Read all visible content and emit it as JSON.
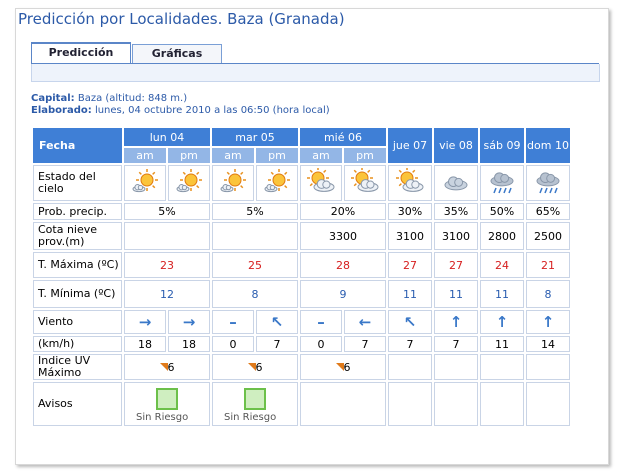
{
  "header": {
    "title": "Predicción por Localidades. Baza (Granada)"
  },
  "tabs": [
    "Predicción",
    "Gráficas"
  ],
  "info": {
    "capital_label": "Capital:",
    "capital": "Baza (altitud: 848 m.)",
    "elaborado_label": "Elaborado:",
    "elaborado": "lunes, 04 octubre 2010 a las 06:50 (hora local)"
  },
  "table": {
    "fecha": "Fecha",
    "days": [
      {
        "name": "lun 04",
        "periods": [
          "am",
          "pm"
        ]
      },
      {
        "name": "mar 05",
        "periods": [
          "am",
          "pm"
        ]
      },
      {
        "name": "mié 06",
        "periods": [
          "am",
          "pm"
        ]
      },
      {
        "name": "jue 07"
      },
      {
        "name": "vie 08"
      },
      {
        "name": "sáb 09"
      },
      {
        "name": "dom 10"
      }
    ],
    "rows": [
      {
        "key": "sky",
        "label": "Estado del cielo"
      },
      {
        "key": "prob",
        "label": "Prob. precip.",
        "cells": [
          "5%",
          "5%",
          "20%",
          "30%",
          "35%",
          "50%",
          "65%"
        ]
      },
      {
        "key": "cota",
        "label": "Cota nieve prov.(m)",
        "cells": [
          null,
          null,
          3300,
          3100,
          3100,
          2800,
          2500
        ]
      },
      {
        "key": "tmax",
        "label": "T. Máxima (ºC)",
        "cells": [
          23,
          25,
          28,
          27,
          27,
          24,
          21
        ]
      },
      {
        "key": "tmin",
        "label": "T. Mínima (ºC)",
        "cells": [
          12,
          8,
          9,
          11,
          11,
          11,
          8
        ]
      },
      {
        "key": "wind",
        "label": "Viento",
        "cells": [
          "→",
          "→",
          "–",
          "↖",
          "–",
          "←",
          "↖",
          "↑",
          "↑",
          "↑"
        ]
      },
      {
        "key": "kmh",
        "label": "(km/h)",
        "cells": [
          18,
          18,
          0,
          7,
          0,
          7,
          7,
          7,
          11,
          14
        ]
      },
      {
        "key": "uv",
        "label": "Indice UV Máximo",
        "cells": [
          6,
          6,
          6,
          null,
          null,
          null,
          null
        ]
      },
      {
        "key": "avisos",
        "label": "Avisos",
        "cells": [
          "Sin Riesgo",
          "Sin Riesgo",
          null,
          null,
          null,
          null,
          null
        ]
      }
    ]
  }
}
